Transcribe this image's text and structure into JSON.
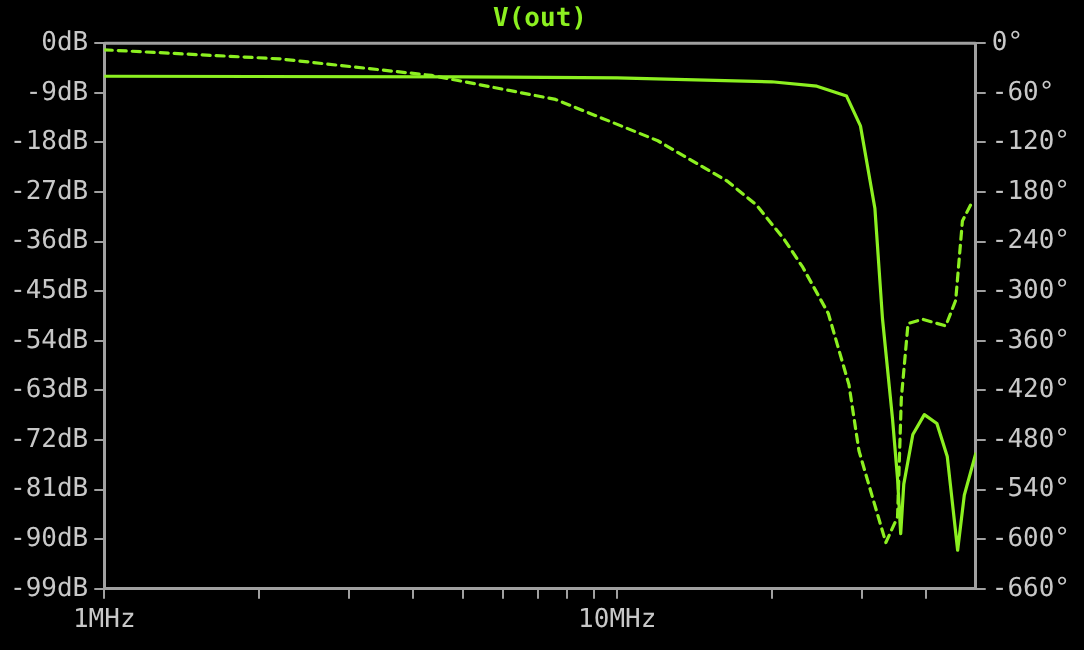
{
  "chart_data": {
    "type": "line",
    "title": "V(out)",
    "log": "x",
    "grid": false,
    "legend": false,
    "marker": "none",
    "xlim": [
      1,
      50
    ],
    "xticks": [
      {
        "value": 1,
        "label": "1MHz"
      },
      {
        "value": 2,
        "label": null
      },
      {
        "value": 3,
        "label": null
      },
      {
        "value": 4,
        "label": null
      },
      {
        "value": 5,
        "label": null
      },
      {
        "value": 6,
        "label": null
      },
      {
        "value": 7,
        "label": null
      },
      {
        "value": 8,
        "label": null
      },
      {
        "value": 9,
        "label": null
      },
      {
        "value": 10,
        "label": "10MHz"
      },
      {
        "value": 20,
        "label": null
      },
      {
        "value": 30,
        "label": null
      },
      {
        "value": 40,
        "label": null
      }
    ],
    "ylim": [
      -99,
      0
    ],
    "yticks": [
      {
        "value": 0,
        "label": "0dB"
      },
      {
        "value": -9,
        "label": "-9dB"
      },
      {
        "value": -18,
        "label": "-18dB"
      },
      {
        "value": -27,
        "label": "-27dB"
      },
      {
        "value": -36,
        "label": "-36dB"
      },
      {
        "value": -45,
        "label": "-45dB"
      },
      {
        "value": -54,
        "label": "-54dB"
      },
      {
        "value": -63,
        "label": "-63dB"
      },
      {
        "value": -72,
        "label": "-72dB"
      },
      {
        "value": -81,
        "label": "-81dB"
      },
      {
        "value": -90,
        "label": "-90dB"
      },
      {
        "value": -99,
        "label": "-99dB"
      }
    ],
    "y2lim": [
      -660,
      0
    ],
    "y2ticks": [
      {
        "value": 0,
        "label": "0°"
      },
      {
        "value": -60,
        "label": "-60°"
      },
      {
        "value": -120,
        "label": "-120°"
      },
      {
        "value": -180,
        "label": "-180°"
      },
      {
        "value": -240,
        "label": "-240°"
      },
      {
        "value": -300,
        "label": "-300°"
      },
      {
        "value": -360,
        "label": "-360°"
      },
      {
        "value": -420,
        "label": "-420°"
      },
      {
        "value": -480,
        "label": "-480°"
      },
      {
        "value": -540,
        "label": "-540°"
      },
      {
        "value": -600,
        "label": "-600°"
      },
      {
        "value": -660,
        "label": "-660°"
      }
    ],
    "series": [
      {
        "color": "#8cf020",
        "line_style": "solid",
        "x": [
          1,
          5,
          10,
          20,
          24.5,
          28,
          29.8,
          31.8,
          32.9,
          34.4,
          35.2,
          35.7,
          36.2,
          37.7,
          39.7,
          42,
          44,
          46.1,
          47.5,
          50
        ],
        "values": [
          -6,
          -6.1,
          -6.3,
          -7,
          -7.8,
          -9.6,
          -15,
          -30,
          -50,
          -68,
          -79,
          -89,
          -80,
          -71,
          -67.4,
          -69,
          -75,
          -92,
          -82,
          -74.5
        ]
      },
      {
        "color": "#8cf020",
        "line_style": "dashed",
        "axis": "y2",
        "x": [
          1,
          2.2,
          4.35,
          7.58,
          12,
          16.4,
          18.7,
          21.2,
          23,
          25.8,
          28.3,
          29.6,
          32,
          33.4,
          35.2,
          35.8,
          36.9,
          39.4,
          43.7,
          45.7,
          47.1,
          49.3
        ],
        "values": [
          -8,
          -19,
          -39,
          -68,
          -118,
          -167,
          -196,
          -238,
          -271,
          -327,
          -413,
          -493,
          -565,
          -604,
          -573,
          -430,
          -339,
          -334,
          -342,
          -311,
          -215,
          -191
        ]
      }
    ]
  }
}
